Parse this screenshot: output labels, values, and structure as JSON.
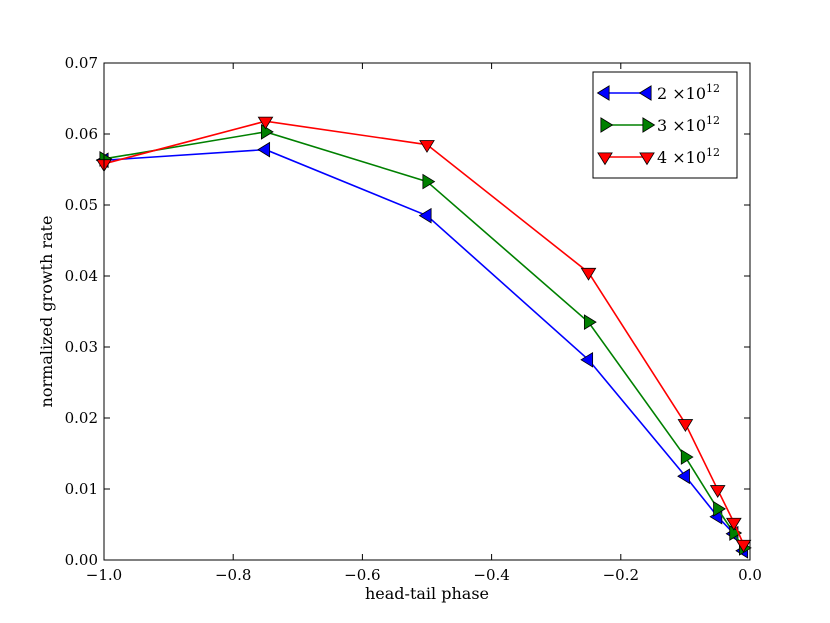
{
  "chart_data": {
    "type": "line",
    "title": "",
    "xlabel": "head-tail phase",
    "ylabel": "normalized growth rate",
    "xlim": [
      -1.0,
      0.0
    ],
    "ylim": [
      0.0,
      0.07
    ],
    "xticks": [
      -1.0,
      -0.8,
      -0.6,
      -0.4,
      -0.2,
      0.0
    ],
    "xtick_labels": [
      "−1.0",
      "−0.8",
      "−0.6",
      "−0.4",
      "−0.2",
      "0.0"
    ],
    "yticks": [
      0.0,
      0.01,
      0.02,
      0.03,
      0.04,
      0.05,
      0.06,
      0.07
    ],
    "ytick_labels": [
      "0.00",
      "0.01",
      "0.02",
      "0.03",
      "0.04",
      "0.05",
      "0.06",
      "0.07"
    ],
    "grid": false,
    "legend_position": "top-right",
    "x": [
      -1.0,
      -0.75,
      -0.5,
      -0.25,
      -0.1,
      -0.05,
      -0.025,
      -0.01
    ],
    "series": [
      {
        "name": "2 ×10",
        "exponent": "12",
        "color": "#0000ff",
        "marker": "triangle-left",
        "values": [
          0.0563,
          0.0578,
          0.0485,
          0.0282,
          0.0118,
          0.0061,
          0.0037,
          0.0013
        ]
      },
      {
        "name": "3 ×10",
        "exponent": "12",
        "color": "#008000",
        "marker": "triangle-right",
        "values": [
          0.0565,
          0.0603,
          0.0533,
          0.0335,
          0.0145,
          0.0072,
          0.0038,
          0.0017
        ]
      },
      {
        "name": "4 ×10",
        "exponent": "12",
        "color": "#ff0000",
        "marker": "triangle-down",
        "values": [
          0.0558,
          0.0618,
          0.0585,
          0.0405,
          0.0192,
          0.0099,
          0.0053,
          0.0022
        ]
      }
    ]
  }
}
